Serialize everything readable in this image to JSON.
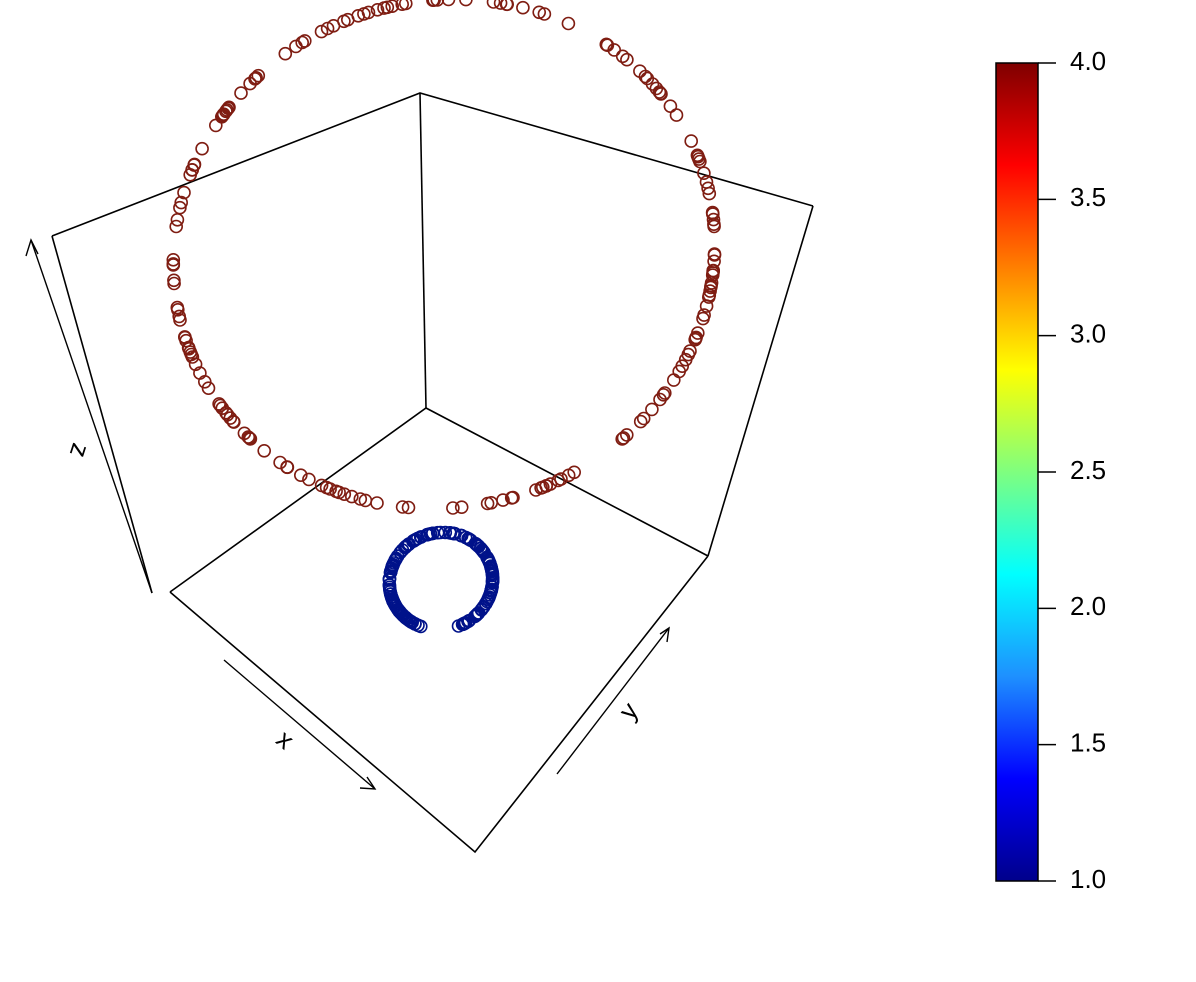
{
  "chart_data": {
    "type": "scatter",
    "title": "",
    "xlabel": "x",
    "ylabel": "y",
    "zlabel": "z",
    "colorbar": {
      "ticks": [
        "1.0",
        "1.5",
        "2.0",
        "2.5",
        "3.0",
        "3.5",
        "4.0"
      ],
      "range": [
        1.0,
        4.0
      ],
      "palette": [
        "#00008B",
        "#0000FF",
        "#1E90FF",
        "#00FFFF",
        "#7FFF7F",
        "#FFFF00",
        "#FF7F00",
        "#FF0000",
        "#7F0000"
      ]
    },
    "series": [
      {
        "z": 1.0,
        "radius": 0.25,
        "count": 180,
        "gap_from_deg": 290,
        "gap_to_deg": 330,
        "color": "#00128A"
      },
      {
        "z": 4.0,
        "radius": 1.0,
        "count": 190,
        "gap_from_deg": -1,
        "gap_to_deg": -1,
        "color": "#7F1D12"
      }
    ]
  }
}
